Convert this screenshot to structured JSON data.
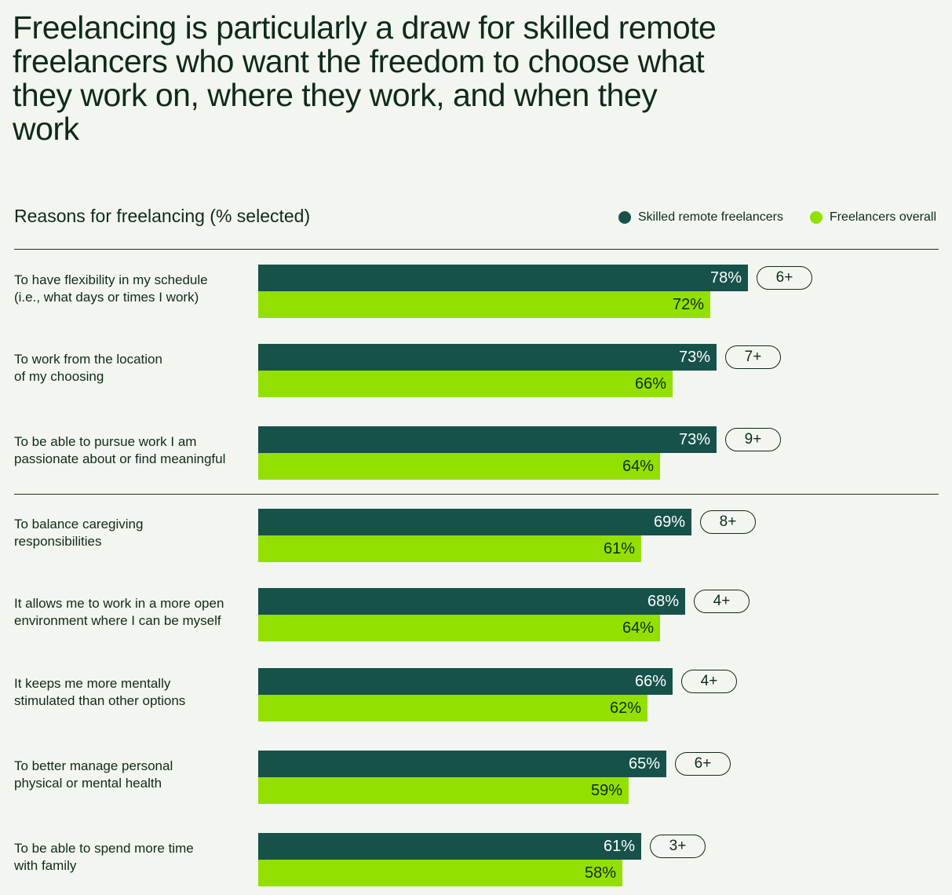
{
  "title": "Freelancing is particularly a draw for skilled remote freelancers who want the freedom to choose what they work on, where they work, and when they work",
  "chart_data": {
    "type": "bar",
    "orientation": "horizontal",
    "subtitle": "Reasons for freelancing (% selected)",
    "legend_position": "top-right",
    "xlim": [
      0,
      100
    ],
    "colors": {
      "skilled": "#16524a",
      "overall": "#93e000"
    },
    "legend": [
      "Skilled remote freelancers",
      "Freelancers overall"
    ],
    "categories": [
      [
        "To have flexibility in my schedule",
        "(i.e., what days or times I work)"
      ],
      [
        "To work from the location",
        "of my choosing"
      ],
      [
        "To be able to pursue work I am",
        "passionate about or find meaningful"
      ],
      [
        "To balance caregiving",
        "responsibilities"
      ],
      [
        "It allows me to work in a more open",
        "environment where I can be myself"
      ],
      [
        "It keeps me more mentally",
        "stimulated than other options"
      ],
      [
        "To better manage personal",
        "physical or mental health"
      ],
      [
        "To be able to spend more time",
        "with family"
      ]
    ],
    "series": [
      {
        "name": "Skilled remote freelancers",
        "values": [
          78,
          73,
          73,
          69,
          68,
          66,
          65,
          61
        ]
      },
      {
        "name": "Freelancers overall",
        "values": [
          72,
          66,
          64,
          61,
          64,
          62,
          59,
          58
        ]
      }
    ],
    "differences": [
      "6+",
      "7+",
      "9+",
      "8+",
      "4+",
      "4+",
      "6+",
      "3+"
    ]
  }
}
